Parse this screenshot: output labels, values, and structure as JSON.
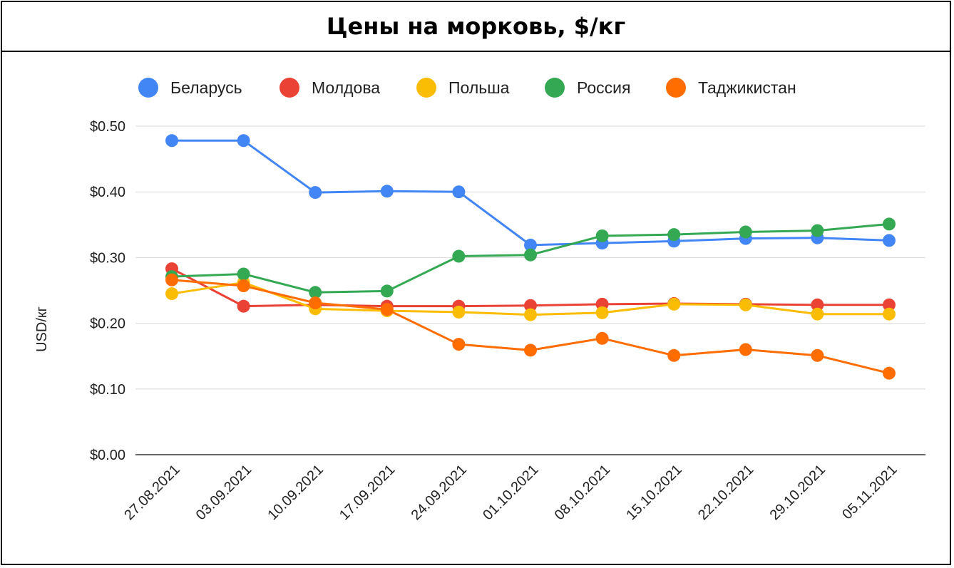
{
  "chart_data": {
    "type": "line",
    "title": "Цены на морковь, $/кг",
    "ylabel": "USD/кг",
    "xlabel": "",
    "ylim": [
      0,
      0.5
    ],
    "yticks": [
      "$0.00",
      "$0.10",
      "$0.20",
      "$0.30",
      "$0.40",
      "$0.50"
    ],
    "ytick_values": [
      0,
      0.1,
      0.2,
      0.3,
      0.4,
      0.5
    ],
    "grid": true,
    "legend_position": "top",
    "categories": [
      "27.08.2021",
      "03.09.2021",
      "10.09.2021",
      "17.09.2021",
      "24.09.2021",
      "01.10.2021",
      "08.10.2021",
      "15.10.2021",
      "22.10.2021",
      "29.10.2021",
      "05.11.2021"
    ],
    "series": [
      {
        "name": "Беларусь",
        "color": "#4285F4",
        "values": [
          0.478,
          0.478,
          0.399,
          0.401,
          0.4,
          0.319,
          0.322,
          0.325,
          0.329,
          0.33,
          0.326
        ]
      },
      {
        "name": "Молдова",
        "color": "#EA4335",
        "values": [
          0.283,
          0.226,
          0.228,
          0.226,
          0.226,
          0.227,
          0.229,
          0.23,
          0.229,
          0.228,
          0.228
        ]
      },
      {
        "name": "Польша",
        "color": "#FBBC04",
        "values": [
          0.245,
          0.262,
          0.222,
          0.219,
          0.217,
          0.213,
          0.216,
          0.229,
          0.228,
          0.214,
          0.214
        ]
      },
      {
        "name": "Россия",
        "color": "#34A853",
        "values": [
          0.271,
          0.275,
          0.247,
          0.249,
          0.302,
          0.304,
          0.333,
          0.335,
          0.339,
          0.341,
          0.351
        ]
      },
      {
        "name": "Таджикистан",
        "color": "#FF6D01",
        "values": [
          0.266,
          0.257,
          0.231,
          0.221,
          0.168,
          0.159,
          0.177,
          0.151,
          0.16,
          0.151,
          0.124
        ]
      }
    ]
  }
}
